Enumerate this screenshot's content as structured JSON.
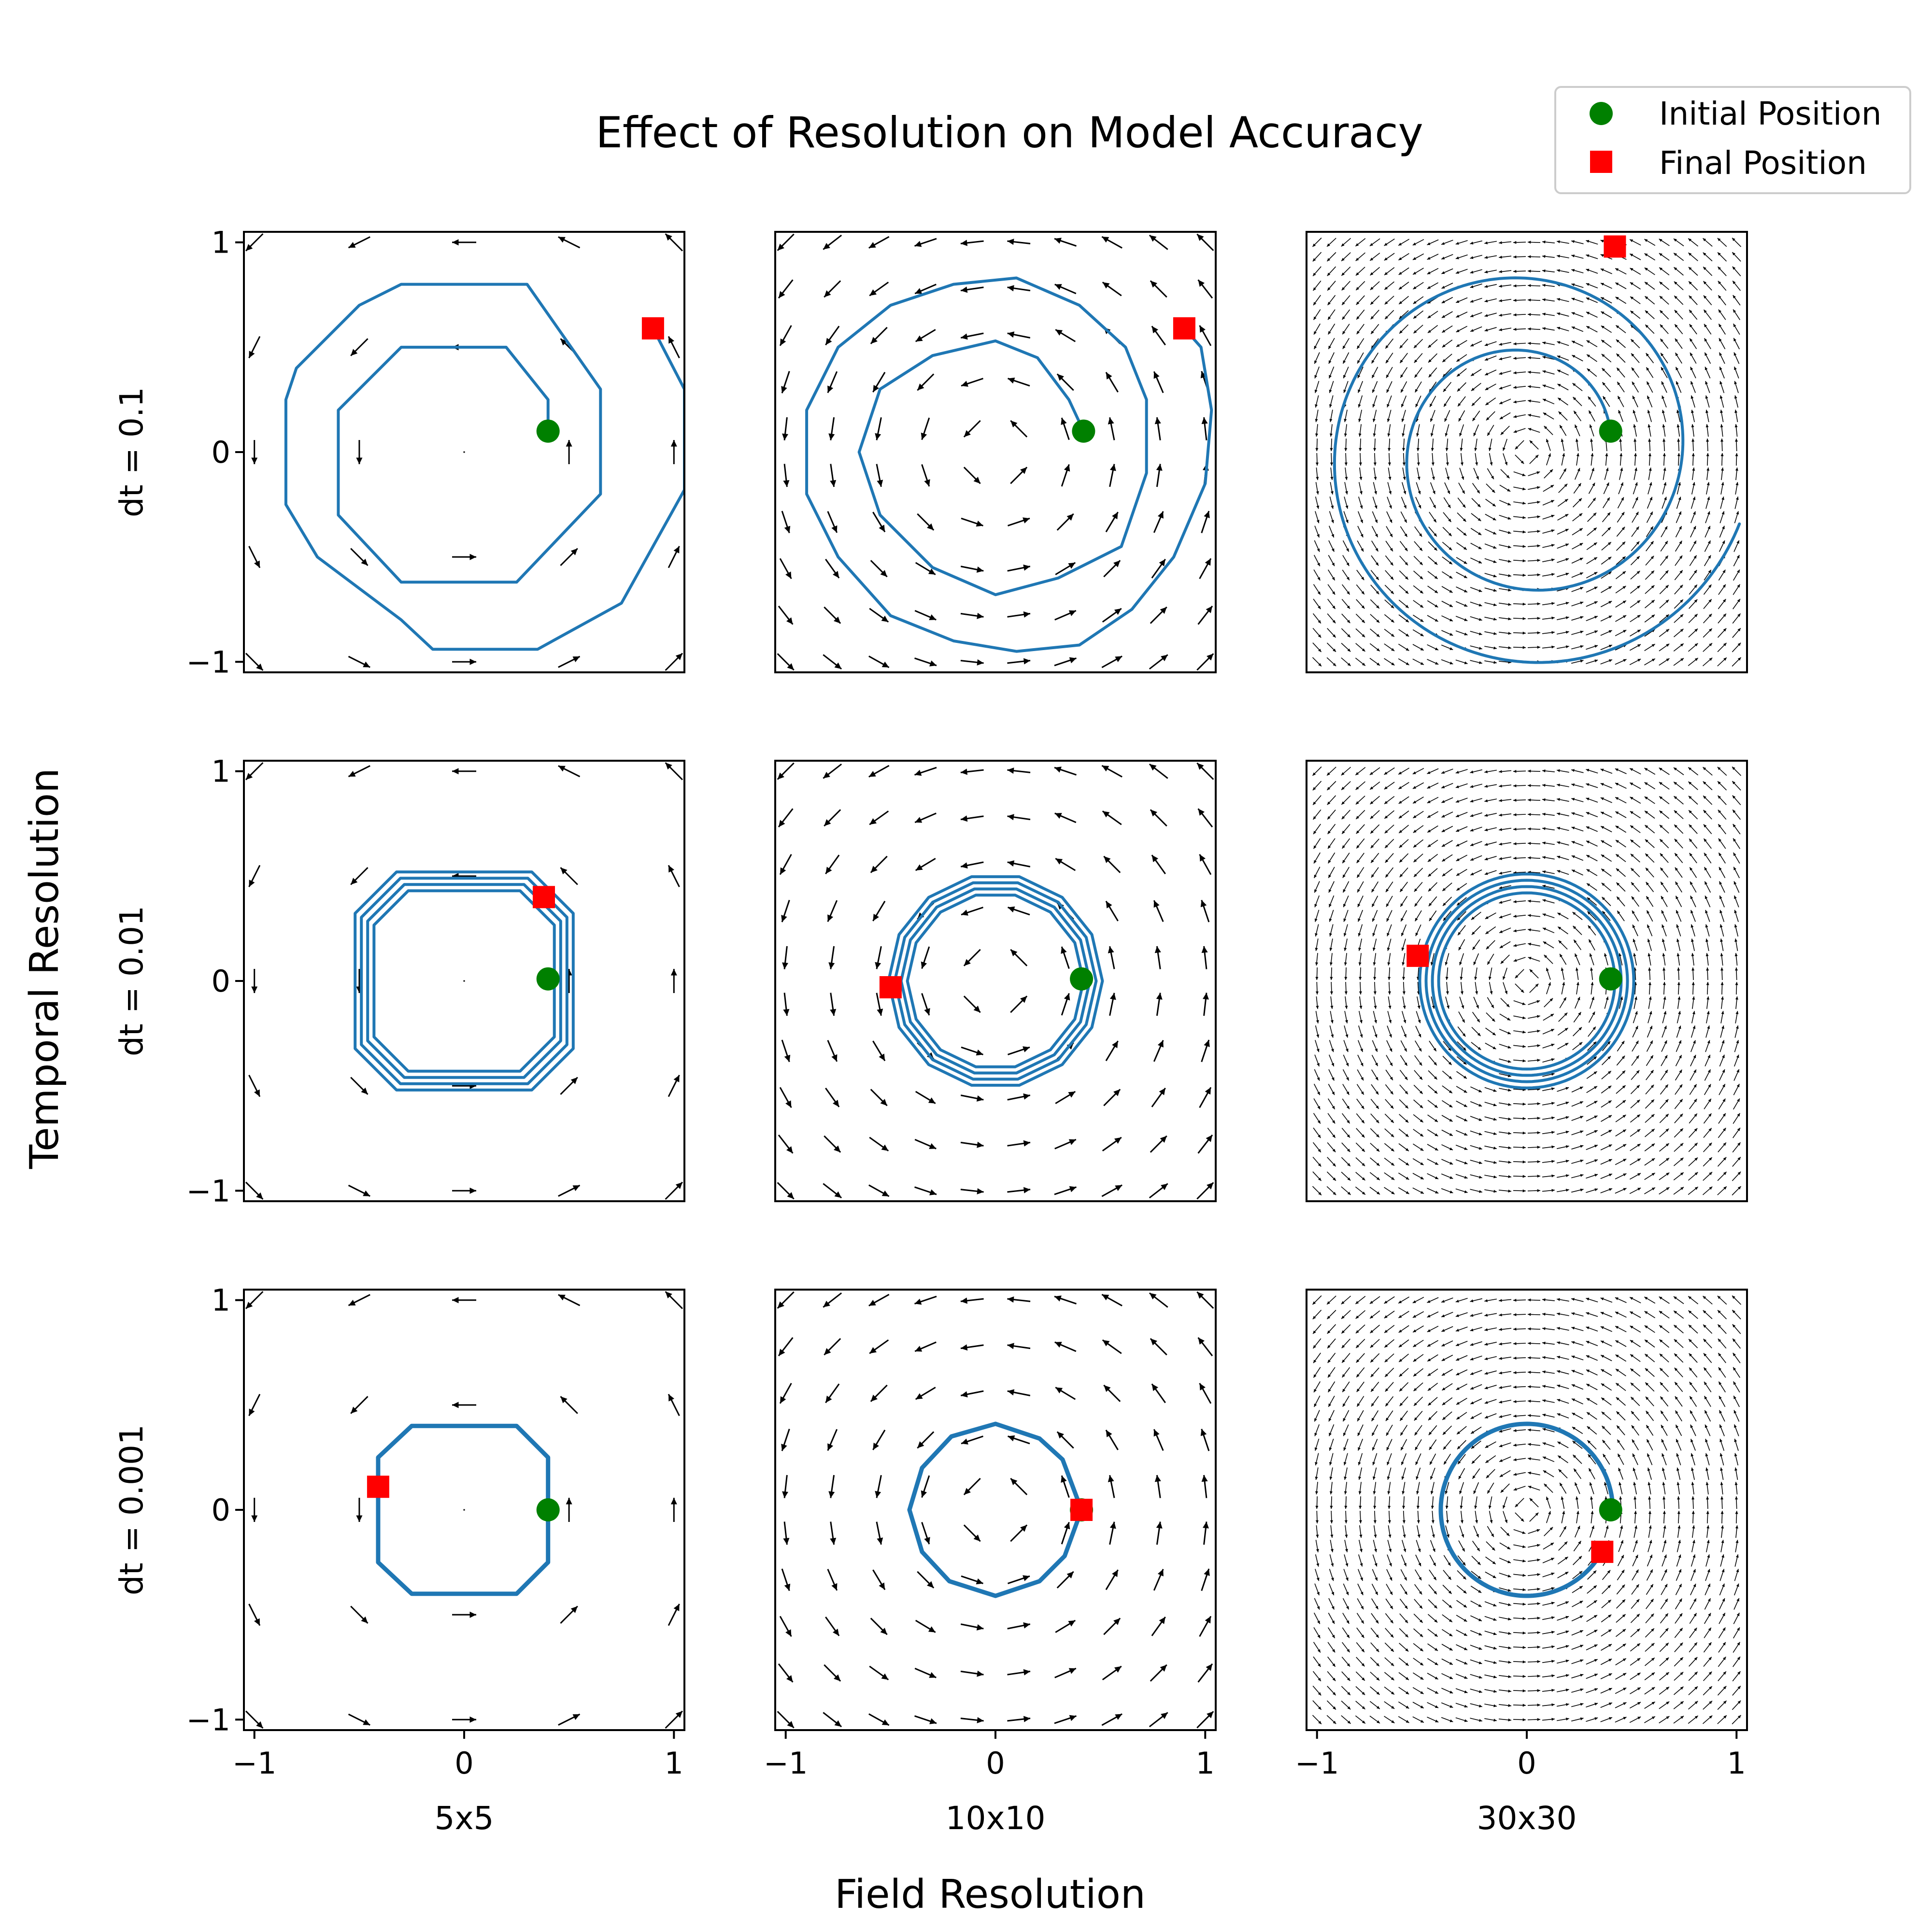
{
  "chart_data": {
    "type": "line",
    "title": "Effect of Resolution on Model Accuracy",
    "xlabel": "Field Resolution",
    "ylabel": "Temporal Resolution",
    "columns": [
      "5x5",
      "10x10",
      "30x30"
    ],
    "rows": [
      "dt = 0.1",
      "dt = 0.01",
      "dt = 0.001"
    ],
    "grid_n": [
      5,
      10,
      30
    ],
    "xlim": [
      -1.05,
      1.05
    ],
    "ylim": [
      -1.05,
      1.05
    ],
    "x_ticks": [
      -1,
      0,
      1
    ],
    "y_ticks": [
      -1,
      0,
      1
    ],
    "x_tick_labels": [
      "−1",
      "0",
      "1"
    ],
    "y_tick_labels": [
      "−1",
      "0",
      "1"
    ],
    "grid": false,
    "legend": {
      "placement": "top-right",
      "entries": [
        {
          "label": "Initial Position",
          "marker": "circle",
          "color": "#008000"
        },
        {
          "label": "Final Position",
          "marker": "square",
          "color": "#ff0000"
        }
      ]
    },
    "colors": {
      "trajectory": "#1f77b4",
      "initial": "#008000",
      "final": "#ff0000",
      "arrows": "#000000"
    },
    "panels": [
      {
        "row": 0,
        "col": 0,
        "start": [
          0.4,
          0.1
        ],
        "end": [
          0.9,
          0.59
        ],
        "path": [
          [
            0.4,
            0.1
          ],
          [
            0.4,
            0.25
          ],
          [
            0.2,
            0.5
          ],
          [
            -0.3,
            0.5
          ],
          [
            -0.6,
            0.2
          ],
          [
            -0.6,
            -0.3
          ],
          [
            -0.3,
            -0.62
          ],
          [
            0.25,
            -0.62
          ],
          [
            0.65,
            -0.2
          ],
          [
            0.65,
            0.3
          ],
          [
            0.3,
            0.8
          ],
          [
            -0.3,
            0.8
          ],
          [
            -0.5,
            0.7
          ],
          [
            -0.8,
            0.4
          ],
          [
            -0.85,
            0.25
          ],
          [
            -0.85,
            -0.25
          ],
          [
            -0.7,
            -0.5
          ],
          [
            -0.3,
            -0.8
          ],
          [
            -0.15,
            -0.94
          ],
          [
            0.35,
            -0.94
          ],
          [
            0.75,
            -0.72
          ],
          [
            1.05,
            -0.18
          ],
          [
            1.05,
            0.3
          ],
          [
            0.9,
            0.59
          ]
        ]
      },
      {
        "row": 0,
        "col": 1,
        "start": [
          0.42,
          0.1
        ],
        "end": [
          0.9,
          0.59
        ],
        "path": [
          [
            0.42,
            0.1
          ],
          [
            0.35,
            0.25
          ],
          [
            0.2,
            0.45
          ],
          [
            0.0,
            0.53
          ],
          [
            -0.3,
            0.46
          ],
          [
            -0.55,
            0.3
          ],
          [
            -0.65,
            0.0
          ],
          [
            -0.55,
            -0.3
          ],
          [
            -0.3,
            -0.55
          ],
          [
            0.0,
            -0.68
          ],
          [
            0.3,
            -0.6
          ],
          [
            0.6,
            -0.45
          ],
          [
            0.72,
            -0.1
          ],
          [
            0.72,
            0.25
          ],
          [
            0.62,
            0.5
          ],
          [
            0.4,
            0.7
          ],
          [
            0.1,
            0.83
          ],
          [
            -0.2,
            0.8
          ],
          [
            -0.5,
            0.7
          ],
          [
            -0.75,
            0.5
          ],
          [
            -0.9,
            0.2
          ],
          [
            -0.9,
            -0.2
          ],
          [
            -0.75,
            -0.5
          ],
          [
            -0.5,
            -0.78
          ],
          [
            -0.2,
            -0.9
          ],
          [
            0.1,
            -0.95
          ],
          [
            0.4,
            -0.92
          ],
          [
            0.65,
            -0.75
          ],
          [
            0.85,
            -0.5
          ],
          [
            1.0,
            -0.15
          ],
          [
            1.03,
            0.2
          ],
          [
            0.98,
            0.5
          ],
          [
            0.9,
            0.59
          ]
        ]
      },
      {
        "row": 0,
        "col": 2,
        "start": [
          0.4,
          0.1
        ],
        "end": [
          0.42,
          0.98
        ],
        "spiral": {
          "r0": 0.41,
          "r1": 1.07,
          "turns": 1.91,
          "theta0": 0.24
        }
      },
      {
        "row": 1,
        "col": 0,
        "start": [
          0.4,
          0.01
        ],
        "end": [
          0.38,
          0.4
        ],
        "rings": {
          "type": "octagon",
          "radii": [
            0.43,
            0.46,
            0.49,
            0.52
          ]
        }
      },
      {
        "row": 1,
        "col": 1,
        "start": [
          0.41,
          0.01
        ],
        "end": [
          -0.5,
          -0.03
        ],
        "rings": {
          "type": "polygon",
          "sides": 14,
          "radii": [
            0.42,
            0.45,
            0.48,
            0.51
          ]
        }
      },
      {
        "row": 1,
        "col": 2,
        "start": [
          0.4,
          0.01
        ],
        "end": [
          -0.52,
          0.12
        ],
        "rings": {
          "type": "circle",
          "radii": [
            0.42,
            0.45,
            0.48,
            0.51
          ]
        }
      },
      {
        "row": 2,
        "col": 0,
        "start": [
          0.4,
          0.0
        ],
        "end": [
          -0.41,
          0.11
        ],
        "path": [
          [
            0.4,
            0.0
          ],
          [
            0.4,
            0.25
          ],
          [
            0.25,
            0.4
          ],
          [
            -0.25,
            0.4
          ],
          [
            -0.41,
            0.25
          ],
          [
            -0.41,
            -0.25
          ],
          [
            -0.25,
            -0.4
          ],
          [
            0.25,
            -0.4
          ],
          [
            0.4,
            -0.25
          ],
          [
            0.4,
            0.0
          ]
        ]
      },
      {
        "row": 2,
        "col": 1,
        "start": [
          0.41,
          0.0
        ],
        "end": [
          0.41,
          0.0
        ],
        "path": [
          [
            0.41,
            0.0
          ],
          [
            0.32,
            0.24
          ],
          [
            0.21,
            0.34
          ],
          [
            0.0,
            0.41
          ],
          [
            -0.21,
            0.35
          ],
          [
            -0.35,
            0.2
          ],
          [
            -0.41,
            0.0
          ],
          [
            -0.35,
            -0.2
          ],
          [
            -0.22,
            -0.34
          ],
          [
            0.0,
            -0.41
          ],
          [
            0.21,
            -0.34
          ],
          [
            0.33,
            -0.22
          ],
          [
            0.41,
            0.0
          ]
        ]
      },
      {
        "row": 2,
        "col": 2,
        "start": [
          0.4,
          0.0
        ],
        "end": [
          0.36,
          -0.2
        ],
        "arc": {
          "r": 0.41,
          "t0": 0.0,
          "t1": 5.8
        }
      }
    ]
  }
}
